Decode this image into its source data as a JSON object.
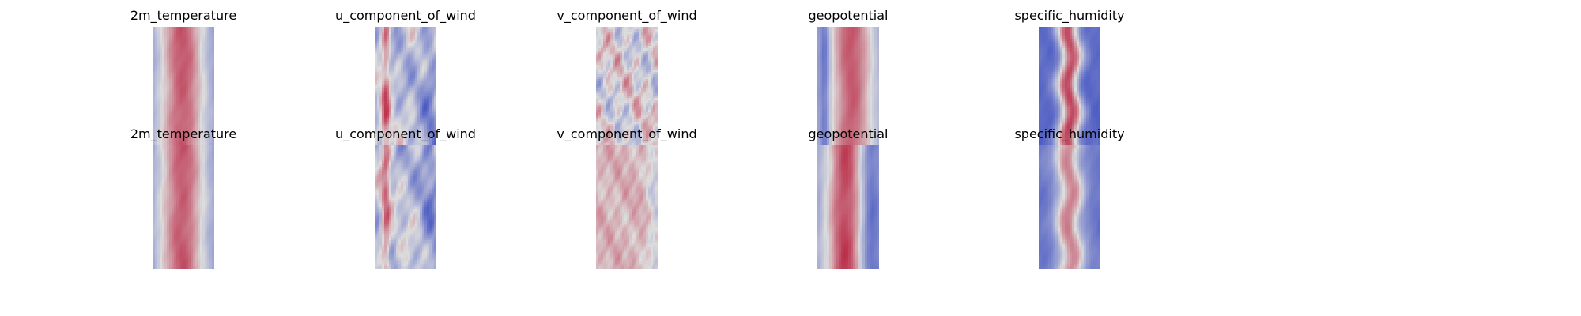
{
  "figure": {
    "rows": [
      {
        "panels": [
          {
            "title": "2m_temperature",
            "field": "temperature"
          },
          {
            "title": "u_component_of_wind",
            "field": "uwind"
          },
          {
            "title": "v_component_of_wind",
            "field": "vwind"
          },
          {
            "title": "geopotential",
            "field": "geopotential"
          },
          {
            "title": "specific_humidity",
            "field": "humidity"
          }
        ]
      },
      {
        "panels": [
          {
            "title": "2m_temperature",
            "field": "temperature"
          },
          {
            "title": "u_component_of_wind",
            "field": "uwind"
          },
          {
            "title": "v_component_of_wind",
            "field": "vwind2"
          },
          {
            "title": "geopotential",
            "field": "geopotential2"
          },
          {
            "title": "specific_humidity",
            "field": "humidity2"
          }
        ]
      }
    ]
  },
  "chart_data": {
    "type": "heatmap",
    "colormap": "coolwarm",
    "axes_visible": false,
    "colors": {
      "low": "#3b4cc0",
      "mid": "#dddddd",
      "high": "#b40426"
    }
  }
}
